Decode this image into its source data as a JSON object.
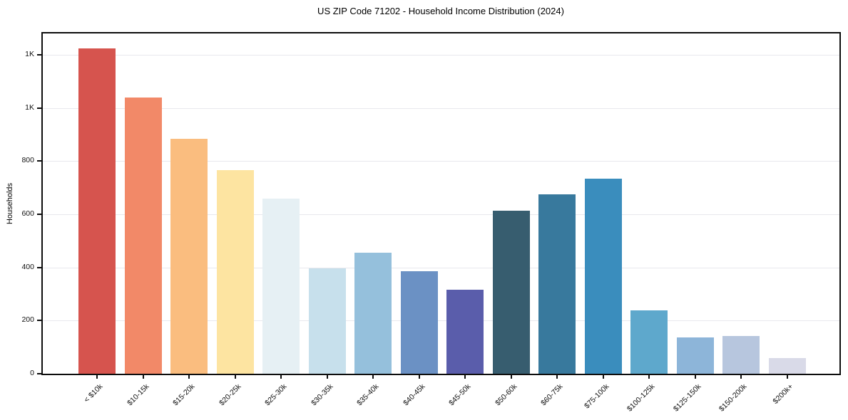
{
  "chart_data": {
    "type": "bar",
    "title": "US ZIP Code 71202 - Household Income Distribution (2024)",
    "xlabel": "",
    "ylabel": "Households",
    "categories": [
      "< $10k",
      "$10-15k",
      "$15-20k",
      "$20-25k",
      "$25-30k",
      "$30-35k",
      "$35-40k",
      "$40-45k",
      "$45-50k",
      "$50-60k",
      "$60-75k",
      "$75-100k",
      "$100-125k",
      "$125-150k",
      "$150-200k",
      "$200k+"
    ],
    "values": [
      1225,
      1040,
      885,
      765,
      660,
      395,
      455,
      385,
      315,
      613,
      675,
      734,
      238,
      136,
      141,
      60
    ],
    "bar_colors": [
      "#d6544e",
      "#f28968",
      "#fabd7f",
      "#fde4a1",
      "#e6f0f4",
      "#c7e0ec",
      "#95c0dc",
      "#6b91c4",
      "#5a5dab",
      "#375d6f",
      "#38799d",
      "#3a8dbd",
      "#5ea8cc",
      "#8db5d9",
      "#b7c6de",
      "#d9dae8"
    ],
    "y_tick_values": [
      0,
      200,
      400,
      600,
      800,
      1000,
      1200
    ],
    "y_tick_labels": [
      "0",
      "200",
      "400",
      "600",
      "800",
      "1K",
      "1K"
    ],
    "ylim": [
      0,
      1280
    ],
    "grid": "horizontal",
    "legend": "none",
    "background_color": "#ffffff",
    "spine_color": "#0d0d0d",
    "gridline_color": "#e8e8ed"
  }
}
